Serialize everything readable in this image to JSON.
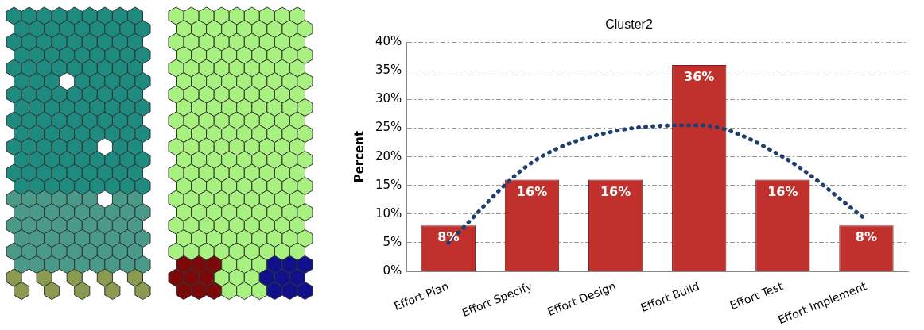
{
  "chart_data": {
    "type": "bar",
    "title": "Cluster2",
    "ylabel": "Percent",
    "categories": [
      "Effort Plan",
      "Effort Specify",
      "Effort Design",
      "Effort Build",
      "Effort Test",
      "Effort Implement"
    ],
    "series": [
      {
        "color": "#c0302c",
        "values": [
          8,
          16,
          16,
          36,
          16,
          8
        ],
        "value_labels": [
          "8%",
          "16%",
          "16%",
          "36%",
          "16%",
          "8%"
        ]
      },
      {
        "type": "line",
        "color": "#1f3f6f",
        "line_style": "dotted",
        "values": [
          5,
          19,
          24.5,
          25.5,
          20,
          9
        ]
      }
    ],
    "ylim": [
      0,
      40
    ],
    "yticks": [
      {
        "value": 0,
        "label": "0%"
      },
      {
        "value": 5,
        "label": "5%"
      },
      {
        "value": 10,
        "label": "10%"
      },
      {
        "value": 15,
        "label": "15%"
      },
      {
        "value": 20,
        "label": "20%"
      },
      {
        "value": 25,
        "label": "25%"
      },
      {
        "value": 30,
        "label": "30%"
      },
      {
        "value": 35,
        "label": "35%"
      },
      {
        "value": 40,
        "label": "40%"
      }
    ],
    "grid": "y"
  }
}
